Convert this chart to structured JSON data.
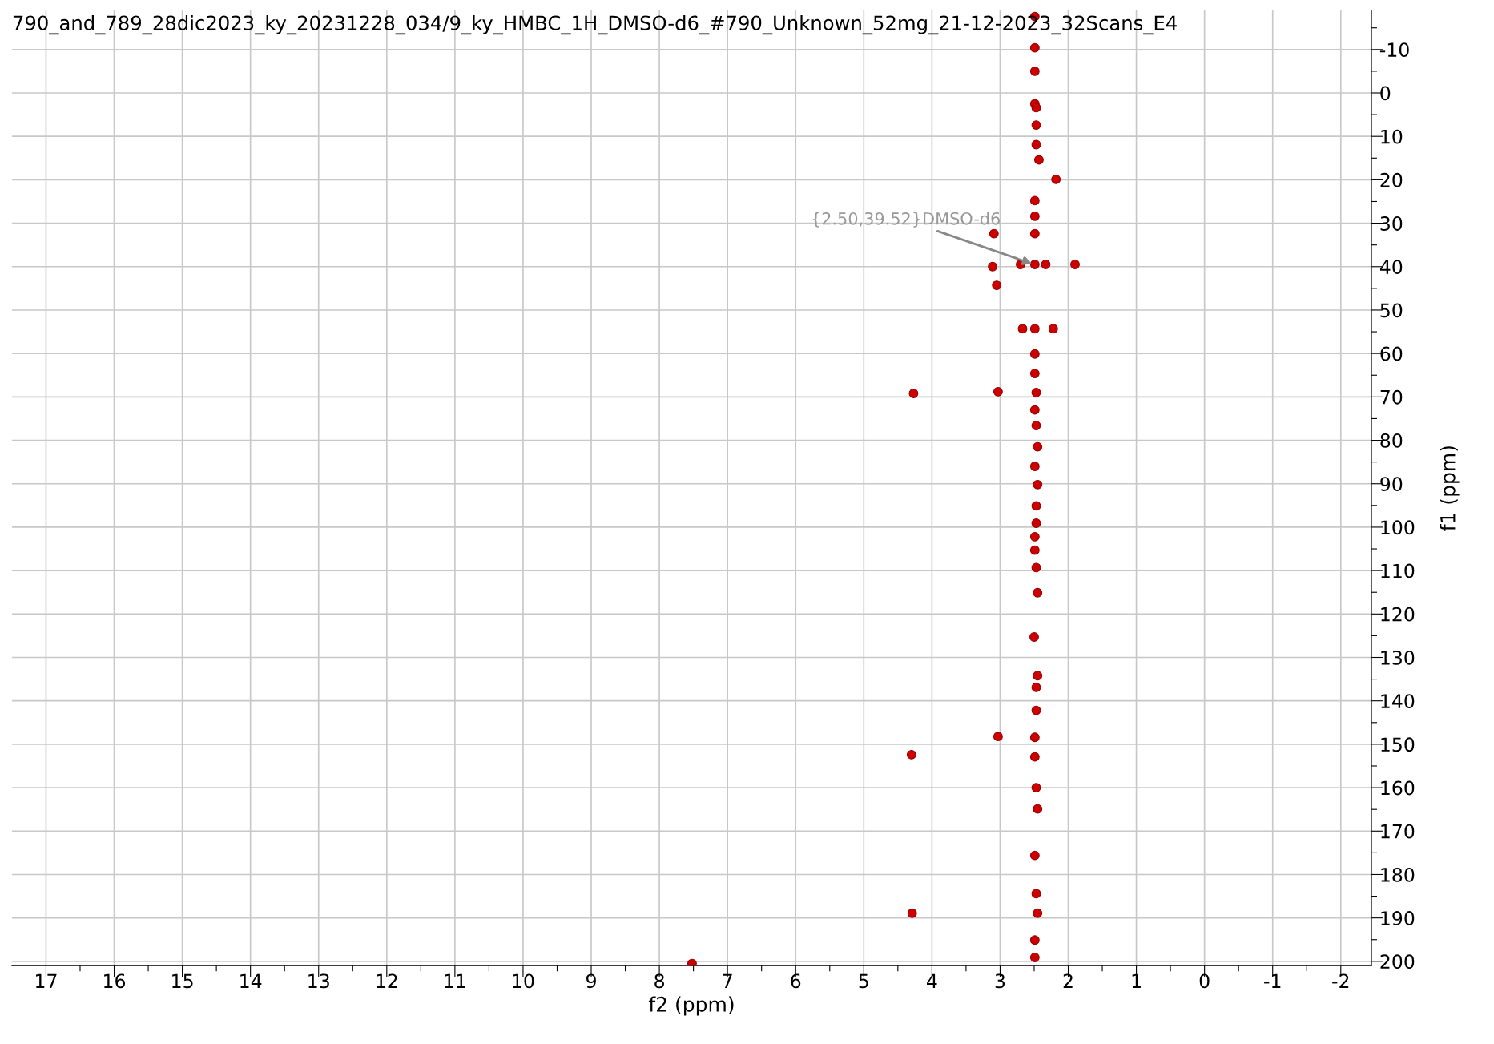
{
  "chart_data": {
    "type": "scatter",
    "title": "790_and_789_28dic2023_ky_20231228_034/9_ky_HMBC_1H_DMSO-d6_#790_Unknown_52mg_21-12-2023_32Scans_E4",
    "xlabel": "f2 (ppm)",
    "ylabel": "f1 (ppm)",
    "x": [
      2.49,
      2.49,
      2.49,
      2.49,
      2.47,
      2.47,
      2.47,
      2.43,
      2.18,
      2.49,
      2.49,
      2.49,
      2.49,
      2.49,
      2.49,
      2.49,
      2.47,
      2.49,
      2.47,
      2.45,
      2.49,
      2.45,
      2.47,
      2.47,
      2.49,
      2.49,
      2.47,
      2.45,
      2.5,
      2.45,
      2.47,
      2.47,
      2.49,
      2.49,
      2.47,
      2.45,
      2.49,
      2.47,
      2.45,
      2.49,
      2.49,
      3.09,
      3.11,
      3.05,
      1.9,
      2.7,
      2.33,
      2.67,
      2.22,
      4.27,
      3.03,
      4.3,
      3.03,
      4.29,
      7.52
    ],
    "values": [
      -17.6,
      -10.4,
      -5,
      2.5,
      3.4,
      7.4,
      11.9,
      15.4,
      19.9,
      24.8,
      28.4,
      32.4,
      39.5,
      54.3,
      60.1,
      64.6,
      69,
      73,
      76.6,
      81.5,
      86,
      90.2,
      95.1,
      99.1,
      102.2,
      105.3,
      109.3,
      115.1,
      125.3,
      134.2,
      136.9,
      142.2,
      148.4,
      152.9,
      160,
      164.9,
      175.6,
      184.4,
      188.9,
      195.1,
      199.1,
      32.4,
      40,
      44.3,
      39.5,
      39.5,
      39.5,
      54.3,
      54.3,
      69.2,
      68.8,
      152.4,
      148.2,
      188.9,
      200.5
    ],
    "color": "#cc0000",
    "marker": "circle",
    "annotations": [
      {
        "text": "{2.50,39.52}DMSO-d6",
        "x": 2.5,
        "y": 39.52
      }
    ],
    "xlim": [
      17.5,
      -2.45
    ],
    "ylim": [
      201,
      -19
    ],
    "xticks": [
      17,
      {
        "value": 16.5,
        "label": null
      },
      16,
      {
        "value": 15.5,
        "label": null
      },
      15,
      {
        "value": 14.5,
        "label": null
      },
      14,
      {
        "value": 13.5,
        "label": null
      },
      13,
      {
        "value": 12.5,
        "label": null
      },
      12,
      {
        "value": 11.5,
        "label": null
      },
      11,
      {
        "value": 10.5,
        "label": null
      },
      10,
      {
        "value": 9.5,
        "label": null
      },
      9,
      {
        "value": 8.5,
        "label": null
      },
      8,
      {
        "value": 7.5,
        "label": null
      },
      7,
      {
        "value": 6.5,
        "label": null
      },
      6,
      {
        "value": 5.5,
        "label": null
      },
      5,
      {
        "value": 4.5,
        "label": null
      },
      4,
      {
        "value": 3.5,
        "label": null
      },
      3,
      {
        "value": 2.5,
        "label": null
      },
      2,
      {
        "value": 1.5,
        "label": null
      },
      1,
      {
        "value": 0.5,
        "label": null
      },
      0,
      {
        "value": -0.5,
        "label": null
      },
      {
        "value": -1,
        "label": "-1"
      },
      {
        "value": -1.5,
        "label": null
      },
      {
        "value": -2,
        "label": "-2"
      }
    ],
    "yticks": [
      {
        "value": -15,
        "label": null
      },
      {
        "value": -10,
        "label": "-10"
      },
      {
        "value": -5,
        "label": null
      },
      0,
      {
        "value": 5,
        "label": null
      },
      10,
      {
        "value": 15,
        "label": null
      },
      20,
      {
        "value": 25,
        "label": null
      },
      30,
      {
        "value": 35,
        "label": null
      },
      40,
      {
        "value": 45,
        "label": null
      },
      50,
      {
        "value": 55,
        "label": null
      },
      60,
      {
        "value": 65,
        "label": null
      },
      70,
      {
        "value": 75,
        "label": null
      },
      80,
      {
        "value": 85,
        "label": null
      },
      90,
      {
        "value": 95,
        "label": null
      },
      100,
      {
        "value": 105,
        "label": null
      },
      110,
      {
        "value": 115,
        "label": null
      },
      120,
      {
        "value": 125,
        "label": null
      },
      130,
      {
        "value": 135,
        "label": null
      },
      140,
      {
        "value": 145,
        "label": null
      },
      150,
      {
        "value": 155,
        "label": null
      },
      160,
      {
        "value": 165,
        "label": null
      },
      170,
      {
        "value": 175,
        "label": null
      },
      180,
      {
        "value": 185,
        "label": null
      },
      190,
      {
        "value": 195,
        "label": null
      },
      200
    ],
    "grid": true
  }
}
